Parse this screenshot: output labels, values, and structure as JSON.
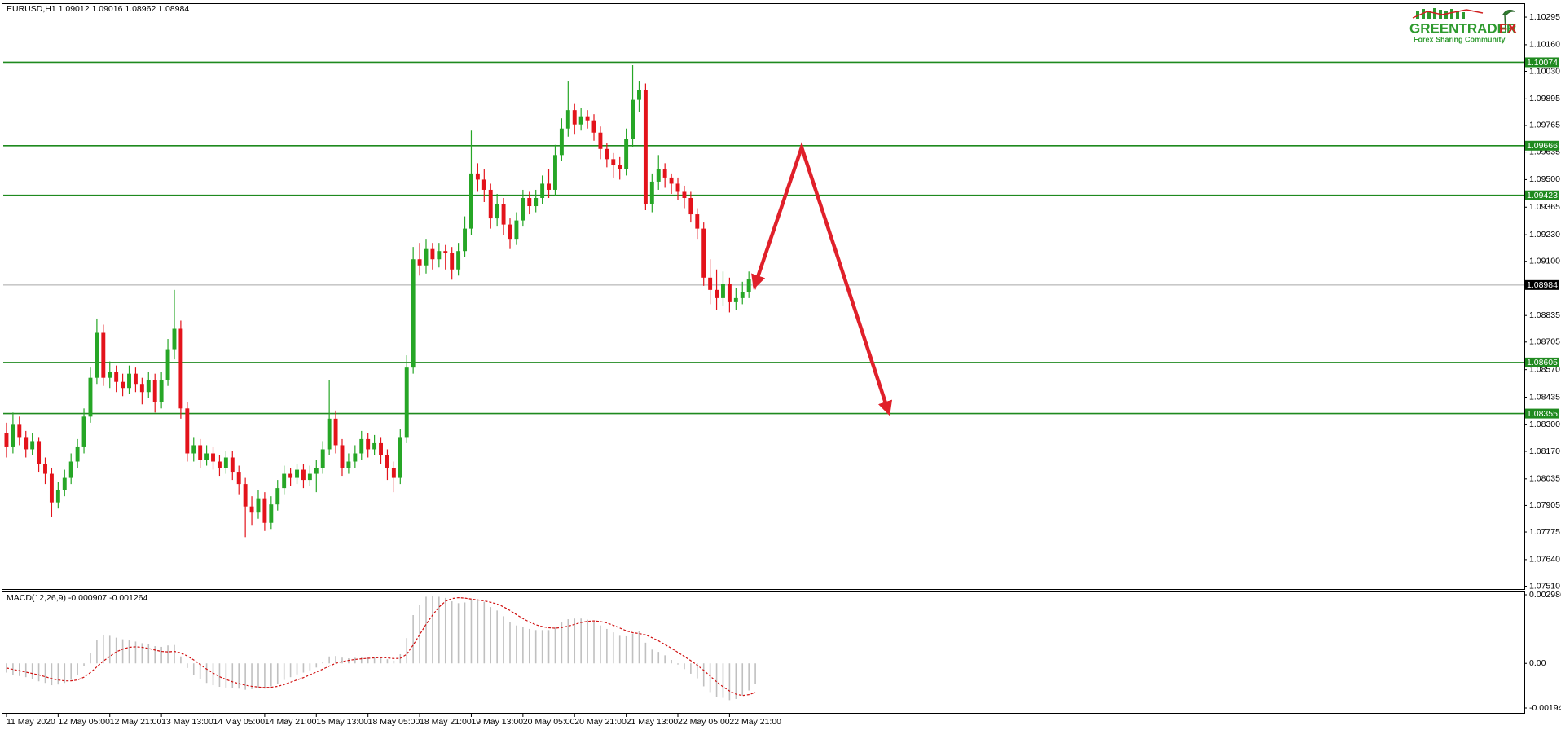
{
  "chart_data": [
    {
      "type": "candlestick",
      "title": "EURUSD,H1  1.09012 1.09016 1.08962 1.08984",
      "up_color": "#26a626",
      "down_color": "#e3131b",
      "xlim": [
        -0.5,
        235
      ],
      "ylim": [
        1.075,
        1.10355
      ],
      "yticks": [
        1.10295,
        {
          "value": 1.1016,
          "label": "1.10160"
        },
        {
          "value": 1.1003,
          "label": "1.10030"
        },
        1.09895,
        1.09765,
        1.09635,
        {
          "value": 1.095,
          "label": "1.09500"
        },
        1.09365,
        {
          "value": 1.0923,
          "label": "1.09230"
        },
        {
          "value": 1.091,
          "label": "1.09100"
        },
        1.08835,
        1.08705,
        {
          "value": 1.0857,
          "label": "1.08570"
        },
        1.08435,
        {
          "value": 1.083,
          "label": "1.08300"
        },
        {
          "value": 1.0817,
          "label": "1.08170"
        },
        1.08035,
        1.07905,
        1.07775,
        {
          "value": 1.0764,
          "label": "1.07640"
        },
        {
          "value": 1.0751,
          "label": "1.07510"
        }
      ],
      "levels": [
        1.10074,
        1.09666,
        1.09423,
        1.08605,
        1.08355
      ],
      "level_color": "#1f8a1f",
      "current_price": 1.08984,
      "current_price_color": "#a8a8a8",
      "open": [
        1.0826,
        1.0819,
        1.083,
        1.0824,
        1.0818,
        1.0822,
        1.0811,
        1.0806,
        1.0792,
        1.0798,
        1.0804,
        1.0812,
        1.0819,
        1.0834,
        1.0853,
        1.0875,
        1.0853,
        1.0856,
        1.0851,
        1.0848,
        1.0855,
        1.085,
        1.0846,
        1.0852,
        1.0841,
        1.0852,
        1.0867,
        1.0877,
        1.0838,
        1.0816,
        1.082,
        1.0813,
        1.0816,
        1.0812,
        1.0809,
        1.0814,
        1.0807,
        1.0801,
        1.079,
        1.0787,
        1.0794,
        1.0782,
        1.0791,
        1.0799,
        1.0806,
        1.0804,
        1.0808,
        1.0803,
        1.0806,
        1.0809,
        1.0818,
        1.0833,
        1.082,
        1.0809,
        1.0812,
        1.0816,
        1.0823,
        1.0818,
        1.0821,
        1.0815,
        1.0809,
        1.0804,
        1.0824,
        1.0858,
        1.0911,
        1.0908,
        1.0916,
        1.0911,
        1.0915,
        1.0914,
        1.0906,
        1.0915,
        1.0926,
        1.0953,
        1.095,
        1.0945,
        1.0931,
        1.0938,
        1.0928,
        1.0921,
        1.093,
        1.0941,
        1.0937,
        1.0941,
        1.0948,
        1.0945,
        1.0962,
        1.0975,
        1.0984,
        1.0977,
        1.0981,
        1.0979,
        1.0973,
        1.0965,
        1.096,
        1.0957,
        1.0955,
        1.097,
        1.0989,
        1.0994,
        1.0938,
        1.0949,
        1.0955,
        1.0951,
        1.0948,
        1.0944,
        1.0941,
        1.0933,
        1.0926,
        1.0902,
        1.0896,
        1.0892,
        1.0899,
        1.089,
        1.0892,
        1.0895,
        1.09012
      ],
      "high": [
        1.0831,
        1.0836,
        1.0834,
        1.0827,
        1.0826,
        1.0824,
        1.0814,
        1.0809,
        1.0802,
        1.0808,
        1.0816,
        1.0823,
        1.0838,
        1.0858,
        1.0882,
        1.0879,
        1.0861,
        1.0859,
        1.0855,
        1.0859,
        1.0858,
        1.0853,
        1.0856,
        1.0855,
        1.0856,
        1.0872,
        1.0896,
        1.0881,
        1.0841,
        1.0824,
        1.0823,
        1.082,
        1.0819,
        1.0815,
        1.0817,
        1.0817,
        1.081,
        1.0804,
        1.0795,
        1.0798,
        1.0797,
        1.0795,
        1.0803,
        1.081,
        1.0809,
        1.0811,
        1.0811,
        1.081,
        1.0813,
        1.0822,
        1.0852,
        1.0837,
        1.0823,
        1.0816,
        1.082,
        1.0827,
        1.0826,
        1.0825,
        1.0824,
        1.0818,
        1.0812,
        1.0828,
        1.0864,
        1.0917,
        1.0919,
        1.0921,
        1.0919,
        1.0919,
        1.0918,
        1.0917,
        1.0919,
        1.0932,
        1.0974,
        1.0958,
        1.0955,
        1.0948,
        1.0943,
        1.0941,
        1.0931,
        1.0934,
        1.0945,
        1.0944,
        1.0945,
        1.0952,
        1.0955,
        1.0967,
        1.098,
        1.0998,
        1.0987,
        1.0985,
        1.0984,
        1.0982,
        1.0976,
        1.0968,
        1.0963,
        1.0961,
        1.0975,
        1.1006,
        1.0998,
        1.0997,
        1.0953,
        1.0962,
        1.0958,
        1.0953,
        1.0951,
        1.0947,
        1.0944,
        1.0936,
        1.0929,
        1.0911,
        1.0906,
        1.0905,
        1.0902,
        1.0897,
        1.09,
        1.0905,
        1.09016
      ],
      "low": [
        1.0814,
        1.0816,
        1.082,
        1.0814,
        1.0815,
        1.0807,
        1.0801,
        1.0785,
        1.0789,
        1.0795,
        1.0801,
        1.0809,
        1.0816,
        1.0831,
        1.085,
        1.0849,
        1.0848,
        1.0846,
        1.0844,
        1.0845,
        1.0846,
        1.084,
        1.0843,
        1.0836,
        1.0838,
        1.0849,
        1.0862,
        1.0833,
        1.0812,
        1.0812,
        1.0809,
        1.081,
        1.0808,
        1.0805,
        1.0806,
        1.0803,
        1.0796,
        1.0775,
        1.0781,
        1.0784,
        1.0778,
        1.0779,
        1.0788,
        1.0796,
        1.08,
        1.0801,
        1.0799,
        1.08,
        1.0797,
        1.0806,
        1.0815,
        1.0816,
        1.0805,
        1.0806,
        1.0809,
        1.0813,
        1.0814,
        1.0815,
        1.0811,
        1.0803,
        1.0797,
        1.0801,
        1.0821,
        1.0855,
        1.0903,
        1.0904,
        1.0906,
        1.0907,
        1.0906,
        1.0901,
        1.0903,
        1.0912,
        1.0923,
        1.0944,
        1.0939,
        1.0926,
        1.0927,
        1.0923,
        1.0916,
        1.0918,
        1.0927,
        1.0933,
        1.0934,
        1.0938,
        1.0941,
        1.0942,
        1.0959,
        1.0971,
        1.0972,
        1.0974,
        1.0975,
        1.0969,
        1.096,
        1.0956,
        1.0951,
        1.095,
        1.0952,
        1.0966,
        1.0983,
        1.0935,
        1.0934,
        1.0945,
        1.0946,
        1.0943,
        1.094,
        1.0936,
        1.0929,
        1.0921,
        1.0898,
        1.0889,
        1.0886,
        1.0888,
        1.0885,
        1.0886,
        1.0889,
        1.0892,
        1.08962
      ],
      "close": [
        1.0819,
        1.083,
        1.0824,
        1.0818,
        1.0822,
        1.0811,
        1.0806,
        1.0792,
        1.0798,
        1.0804,
        1.0812,
        1.0819,
        1.0834,
        1.0853,
        1.0875,
        1.0853,
        1.0856,
        1.0851,
        1.0848,
        1.0855,
        1.085,
        1.0846,
        1.0852,
        1.0841,
        1.0852,
        1.0867,
        1.0877,
        1.0838,
        1.0816,
        1.082,
        1.0813,
        1.0816,
        1.0812,
        1.0809,
        1.0814,
        1.0807,
        1.0801,
        1.079,
        1.0787,
        1.0794,
        1.0782,
        1.0791,
        1.0799,
        1.0806,
        1.0804,
        1.0808,
        1.0803,
        1.0806,
        1.0809,
        1.0818,
        1.0833,
        1.082,
        1.0809,
        1.0812,
        1.0816,
        1.0823,
        1.0818,
        1.0821,
        1.0815,
        1.0809,
        1.0804,
        1.0824,
        1.0858,
        1.0911,
        1.0908,
        1.0916,
        1.0911,
        1.0915,
        1.0914,
        1.0906,
        1.0915,
        1.0926,
        1.0953,
        1.095,
        1.0945,
        1.0931,
        1.0938,
        1.0928,
        1.0921,
        1.093,
        1.0941,
        1.0937,
        1.0941,
        1.0948,
        1.0945,
        1.0962,
        1.0975,
        1.0984,
        1.0977,
        1.0981,
        1.0979,
        1.0973,
        1.0965,
        1.096,
        1.0957,
        1.0955,
        1.097,
        1.0989,
        1.0994,
        1.0938,
        1.0949,
        1.0955,
        1.0951,
        1.0948,
        1.0944,
        1.0941,
        1.0933,
        1.0926,
        1.0902,
        1.0896,
        1.0892,
        1.0899,
        1.089,
        1.0892,
        1.0895,
        1.09012,
        1.08984
      ]
    },
    {
      "type": "macd",
      "title": "MACD(12,26,9) -0.000907 -0.001264",
      "color": "#c0c0c0",
      "signal_color": "#d01010",
      "xlim": [
        -0.5,
        235
      ],
      "ylim": [
        -0.001941,
        0.002986
      ],
      "yticks": [
        0.002986,
        {
          "value": 0,
          "label": "0.00"
        },
        -0.001941
      ],
      "xticks": [
        {
          "value": 0,
          "label": "11 May 2020"
        },
        {
          "value": 8,
          "label": "12 May 05:00"
        },
        {
          "value": 16,
          "label": "12 May 21:00"
        },
        {
          "value": 24,
          "label": "13 May 13:00"
        },
        {
          "value": 32,
          "label": "14 May 05:00"
        },
        {
          "value": 40,
          "label": "14 May 21:00"
        },
        {
          "value": 48,
          "label": "15 May 13:00"
        },
        {
          "value": 56,
          "label": "18 May 05:00"
        },
        {
          "value": 64,
          "label": "18 May 21:00"
        },
        {
          "value": 72,
          "label": "19 May 13:00"
        },
        {
          "value": 80,
          "label": "20 May 05:00"
        },
        {
          "value": 88,
          "label": "20 May 21:00"
        },
        {
          "value": 96,
          "label": "21 May 13:00"
        },
        {
          "value": 104,
          "label": "22 May 05:00"
        },
        {
          "value": 112,
          "label": "22 May 21:00"
        }
      ],
      "values": [
        -0.0004,
        -0.0005,
        -0.00055,
        -0.0006,
        -0.00068,
        -0.00078,
        -0.00085,
        -0.00095,
        -0.00092,
        -0.00085,
        -0.00072,
        -0.0005,
        -0.0001,
        0.00045,
        0.001,
        0.00125,
        0.0012,
        0.00112,
        0.00105,
        0.001,
        0.00095,
        0.00088,
        0.00085,
        0.00075,
        0.00072,
        0.00078,
        0.0008,
        0.0003,
        -0.0002,
        -0.0005,
        -0.0007,
        -0.00085,
        -0.00095,
        -0.00102,
        -0.00105,
        -0.00108,
        -0.0011,
        -0.00115,
        -0.00112,
        -0.00108,
        -0.0011,
        -0.001,
        -0.00088,
        -0.00072,
        -0.0006,
        -0.00048,
        -0.0004,
        -0.0003,
        -0.00018,
        5e-05,
        0.0003,
        0.00032,
        0.00025,
        0.00022,
        0.00024,
        0.00028,
        0.00027,
        0.00028,
        0.00025,
        0.00018,
        0.00012,
        0.0004,
        0.0011,
        0.0021,
        0.00255,
        0.0029,
        0.00295,
        0.0029,
        0.00285,
        0.0027,
        0.00262,
        0.00265,
        0.0028,
        0.00278,
        0.00268,
        0.00245,
        0.0023,
        0.00205,
        0.0018,
        0.00165,
        0.0016,
        0.0015,
        0.00145,
        0.00145,
        0.00145,
        0.0016,
        0.00178,
        0.00192,
        0.00195,
        0.00195,
        0.0019,
        0.0018,
        0.00165,
        0.0015,
        0.00135,
        0.0012,
        0.00118,
        0.0013,
        0.0014,
        0.0009,
        0.0006,
        0.0005,
        0.00035,
        0.00015,
        -5e-05,
        -0.00025,
        -0.00045,
        -0.00065,
        -0.001,
        -0.00125,
        -0.00145,
        -0.0015,
        -0.0016,
        -0.00155,
        -0.0014,
        -0.00118,
        -0.000907
      ],
      "signal": [
        -0.0002,
        -0.00026,
        -0.00032,
        -0.00038,
        -0.00044,
        -0.0005,
        -0.00058,
        -0.00066,
        -0.00072,
        -0.00076,
        -0.00076,
        -0.00072,
        -0.0006,
        -0.0004,
        -0.00015,
        0.0001,
        0.0003,
        0.0005,
        0.00062,
        0.0007,
        0.00072,
        0.0007,
        0.00065,
        0.00058,
        0.00052,
        0.0005,
        0.00052,
        0.00046,
        0.00032,
        0.00015,
        -5e-05,
        -0.00025,
        -0.00042,
        -0.00058,
        -0.0007,
        -0.0008,
        -0.00088,
        -0.00095,
        -0.001,
        -0.00103,
        -0.00105,
        -0.00104,
        -0.001,
        -0.00092,
        -0.00082,
        -0.00072,
        -0.00062,
        -0.0005,
        -0.00038,
        -0.00025,
        -0.00012,
        0,
        8e-05,
        0.00013,
        0.00017,
        0.0002,
        0.00022,
        0.00024,
        0.00025,
        0.00024,
        0.00021,
        0.00022,
        0.0004,
        0.0008,
        0.00125,
        0.0017,
        0.0021,
        0.00245,
        0.0027,
        0.00282,
        0.00286,
        0.00284,
        0.0028,
        0.00276,
        0.00272,
        0.00266,
        0.00258,
        0.00246,
        0.0023,
        0.00212,
        0.00195,
        0.0018,
        0.00168,
        0.0016,
        0.00155,
        0.00153,
        0.00156,
        0.00162,
        0.0017,
        0.00178,
        0.00183,
        0.00185,
        0.00182,
        0.00176,
        0.00166,
        0.00154,
        0.00142,
        0.00134,
        0.0013,
        0.00124,
        0.00112,
        0.00098,
        0.00082,
        0.00066,
        0.00048,
        0.0003,
        0.00012,
        -8e-05,
        -0.0003,
        -0.00055,
        -0.0008,
        -0.00102,
        -0.0012,
        -0.00134,
        -0.0014,
        -0.00136,
        -0.001264
      ]
    }
  ],
  "logo": {
    "name": "GREENTRADER",
    "suffix": "FX",
    "tagline": "Forex Sharing Community"
  }
}
